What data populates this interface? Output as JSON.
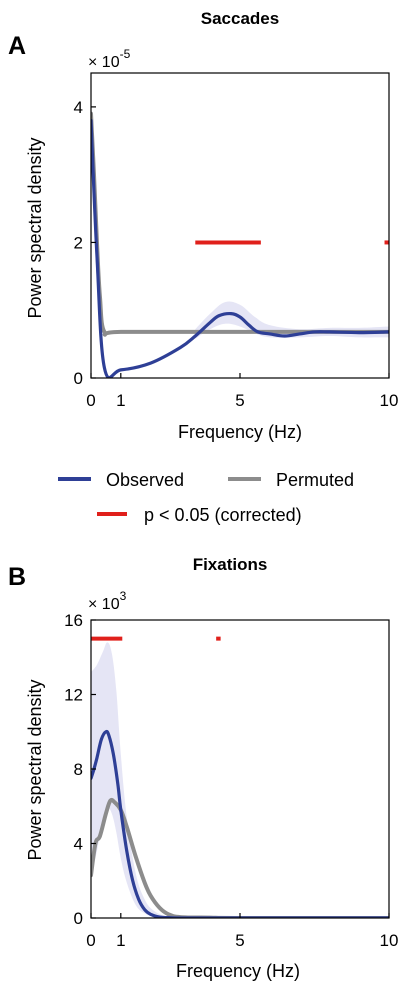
{
  "legend": {
    "observed_label": "Observed",
    "permuted_label": "Permuted",
    "sig_label": "p < 0.05 (corrected)",
    "observed_color": "#2e3f96",
    "permuted_color": "#8c8c8c",
    "sig_color": "#e0201b",
    "band_color": "#dcdcf2"
  },
  "chart_data": [
    {
      "panel": "A",
      "type": "line",
      "title": "Saccades",
      "xlabel": "Frequency (Hz)",
      "ylabel": "Power spectral density",
      "multiplier_base": "× 10",
      "multiplier_exp": "-5",
      "xlim": [
        0,
        10
      ],
      "ylim": [
        0,
        4.5
      ],
      "xticks": [
        0,
        1,
        5,
        10
      ],
      "yticks": [
        0,
        2,
        4
      ],
      "grid": false,
      "series": [
        {
          "name": "Observed",
          "x": [
            0,
            0.2,
            0.45,
            1,
            2,
            3,
            3.5,
            4,
            4.3,
            4.7,
            5,
            5.3,
            5.6,
            6,
            6.5,
            7,
            7.5,
            8,
            9,
            10
          ],
          "y": [
            3.8,
            1.8,
            0.15,
            0.12,
            0.22,
            0.45,
            0.62,
            0.82,
            0.92,
            0.95,
            0.9,
            0.78,
            0.68,
            0.65,
            0.62,
            0.65,
            0.68,
            0.68,
            0.67,
            0.68
          ]
        },
        {
          "name": "Permuted",
          "x": [
            0,
            0.1,
            0.2,
            0.3,
            0.45,
            1,
            5,
            10
          ],
          "y": [
            3.9,
            3.0,
            2.0,
            1.2,
            0.68,
            0.68,
            0.68,
            0.68
          ]
        }
      ],
      "band": {
        "x": [
          3.5,
          4,
          4.5,
          5,
          5.5,
          6,
          7,
          8,
          9,
          10
        ],
        "upper": [
          0.72,
          0.95,
          1.12,
          1.08,
          0.9,
          0.78,
          0.72,
          0.74,
          0.74,
          0.76
        ],
        "lower": [
          0.58,
          0.72,
          0.8,
          0.76,
          0.66,
          0.6,
          0.6,
          0.62,
          0.6,
          0.6
        ]
      },
      "significance": {
        "y": 2.0,
        "ranges": [
          [
            3.5,
            5.7
          ],
          [
            9.85,
            10
          ]
        ]
      }
    },
    {
      "panel": "B",
      "type": "line",
      "title": "Fixations",
      "xlabel": "Frequency (Hz)",
      "ylabel": "Power spectral density",
      "multiplier_base": "× 10",
      "multiplier_exp": "3",
      "xlim": [
        0,
        10
      ],
      "ylim": [
        0,
        16
      ],
      "xticks": [
        0,
        1,
        5,
        10
      ],
      "yticks": [
        0,
        4,
        8,
        12,
        16
      ],
      "grid": false,
      "series": [
        {
          "name": "Observed",
          "x": [
            0,
            0.1,
            0.2,
            0.35,
            0.5,
            0.6,
            0.75,
            0.9,
            1.0,
            1.2,
            1.4,
            1.6,
            1.8,
            2.0,
            2.3,
            2.6,
            3.0,
            4.0,
            5.0,
            10.0
          ],
          "y": [
            7.5,
            8.0,
            8.6,
            9.6,
            10.0,
            9.8,
            8.8,
            7.2,
            5.8,
            3.6,
            2.0,
            1.0,
            0.45,
            0.2,
            0.05,
            0.02,
            0.0,
            0.0,
            0.0,
            0.0
          ]
        },
        {
          "name": "Permuted",
          "x": [
            0,
            0.15,
            0.3,
            0.5,
            0.65,
            0.8,
            1.0,
            1.2,
            1.5,
            1.8,
            2.0,
            2.3,
            2.6,
            3.0,
            4.0,
            5.0,
            10.0
          ],
          "y": [
            2.3,
            4.0,
            4.4,
            5.6,
            6.3,
            6.2,
            5.8,
            4.9,
            3.3,
            1.9,
            1.2,
            0.55,
            0.2,
            0.05,
            0.02,
            0.0,
            0.0
          ]
        }
      ],
      "band": {
        "x": [
          0,
          0.2,
          0.4,
          0.55,
          0.7,
          0.85,
          1.0,
          1.2,
          1.5,
          1.8,
          2.1,
          2.5,
          3.0
        ],
        "upper": [
          13.2,
          13.6,
          14.3,
          14.8,
          14.2,
          12.2,
          8.8,
          5.4,
          2.4,
          1.0,
          0.4,
          0.1,
          0.0
        ],
        "lower": [
          2.2,
          3.6,
          5.2,
          5.9,
          5.6,
          4.6,
          3.2,
          1.9,
          0.7,
          0.25,
          0.08,
          0.0,
          0.0
        ]
      },
      "significance": {
        "y": 15.0,
        "ranges": [
          [
            0,
            1.05
          ],
          [
            4.2,
            4.35
          ]
        ]
      }
    }
  ]
}
